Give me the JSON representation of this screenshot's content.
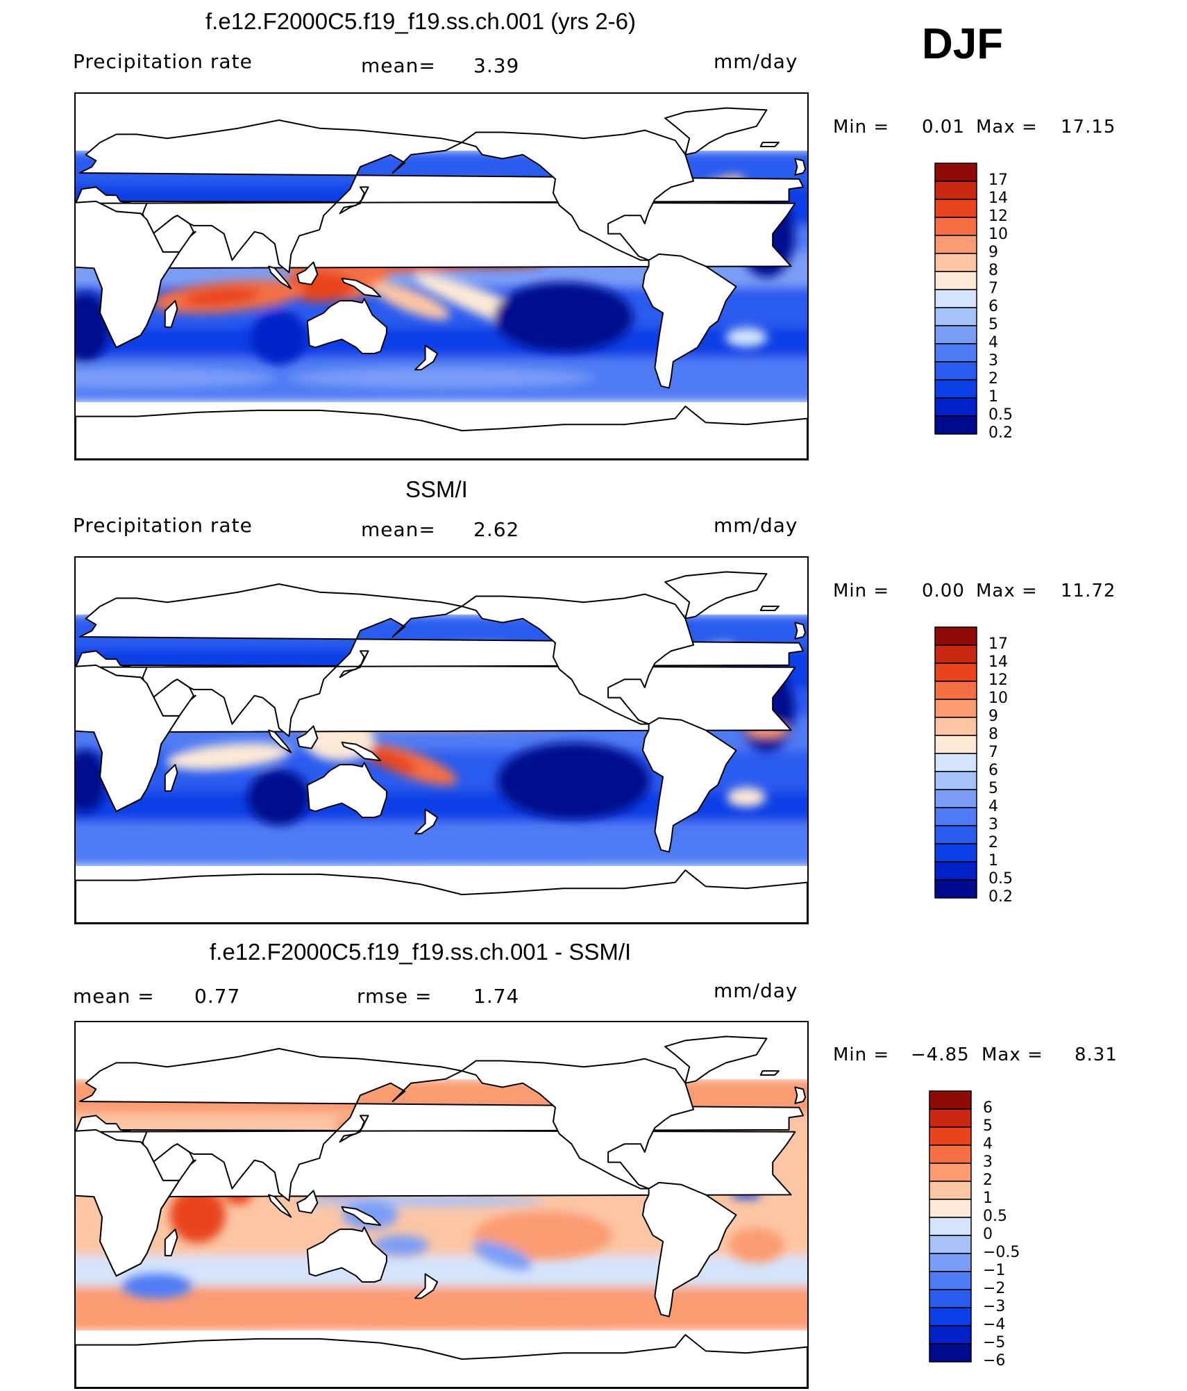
{
  "figure": {
    "season": "DJF",
    "colors": {
      "abs_scale": [
        "#000a8c",
        "#0021c8",
        "#0a40e6",
        "#2b5cf0",
        "#4f7cf5",
        "#7a9ef7",
        "#a7c2fa",
        "#d4e4fc",
        "#fde9d6",
        "#fcc6a4",
        "#fa9b72",
        "#f66f45",
        "#e8451e",
        "#c7280f",
        "#8e0b08"
      ],
      "diff_scale": [
        "#000a8c",
        "#0021c8",
        "#0a40e6",
        "#2b5cf0",
        "#4f7cf5",
        "#7a9ef7",
        "#a7c2fa",
        "#d4e4fc",
        "#fde9d6",
        "#fcc6a4",
        "#fa9b72",
        "#f66f45",
        "#e8451e",
        "#c7280f",
        "#8e0b08"
      ],
      "land": "#ffffff",
      "coast": "#000000"
    }
  },
  "panels": [
    {
      "title": "f.e12.F2000C5.f19_f19.ss.ch.001 (yrs 2-6)",
      "left_label": "Precipitation rate",
      "mid_label": "mean=",
      "mid_value": "3.39",
      "units": "mm/day",
      "min_label": "Min =",
      "min_value": "0.01",
      "max_label": "Max =",
      "max_value": "17.15",
      "colorbar_labels": [
        "17",
        "14",
        "12",
        "10",
        "9",
        "8",
        "7",
        "6",
        "5",
        "4",
        "3",
        "2",
        "1",
        "0.5",
        "0.2"
      ]
    },
    {
      "title": "SSM/I",
      "left_label": "Precipitation rate",
      "mid_label": "mean=",
      "mid_value": "2.62",
      "units": "mm/day",
      "min_label": "Min =",
      "min_value": "0.00",
      "max_label": "Max =",
      "max_value": "11.72",
      "colorbar_labels": [
        "17",
        "14",
        "12",
        "10",
        "9",
        "8",
        "7",
        "6",
        "5",
        "4",
        "3",
        "2",
        "1",
        "0.5",
        "0.2"
      ]
    },
    {
      "title": "f.e12.F2000C5.f19_f19.ss.ch.001 - SSM/I",
      "left_label": "mean =",
      "left_value": "0.77",
      "mid_label": "rmse =",
      "mid_value": "1.74",
      "units": "mm/day",
      "min_label": "Min =",
      "min_value": "−4.85",
      "max_label": "Max =",
      "max_value": "8.31",
      "colorbar_labels": [
        "6",
        "5",
        "4",
        "3",
        "2",
        "1",
        "0.5",
        "0",
        "−0.5",
        "−1",
        "−2",
        "−3",
        "−4",
        "−5",
        "−6"
      ]
    }
  ]
}
